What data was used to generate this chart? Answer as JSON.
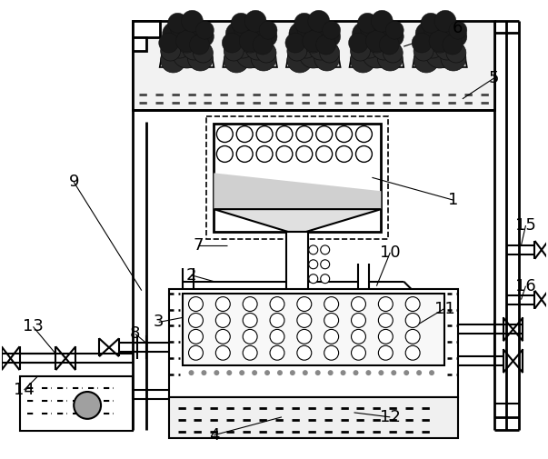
{
  "bg_color": "#ffffff",
  "lc": "#000000",
  "fig_width": 6.03,
  "fig_height": 5.05,
  "dpi": 100
}
